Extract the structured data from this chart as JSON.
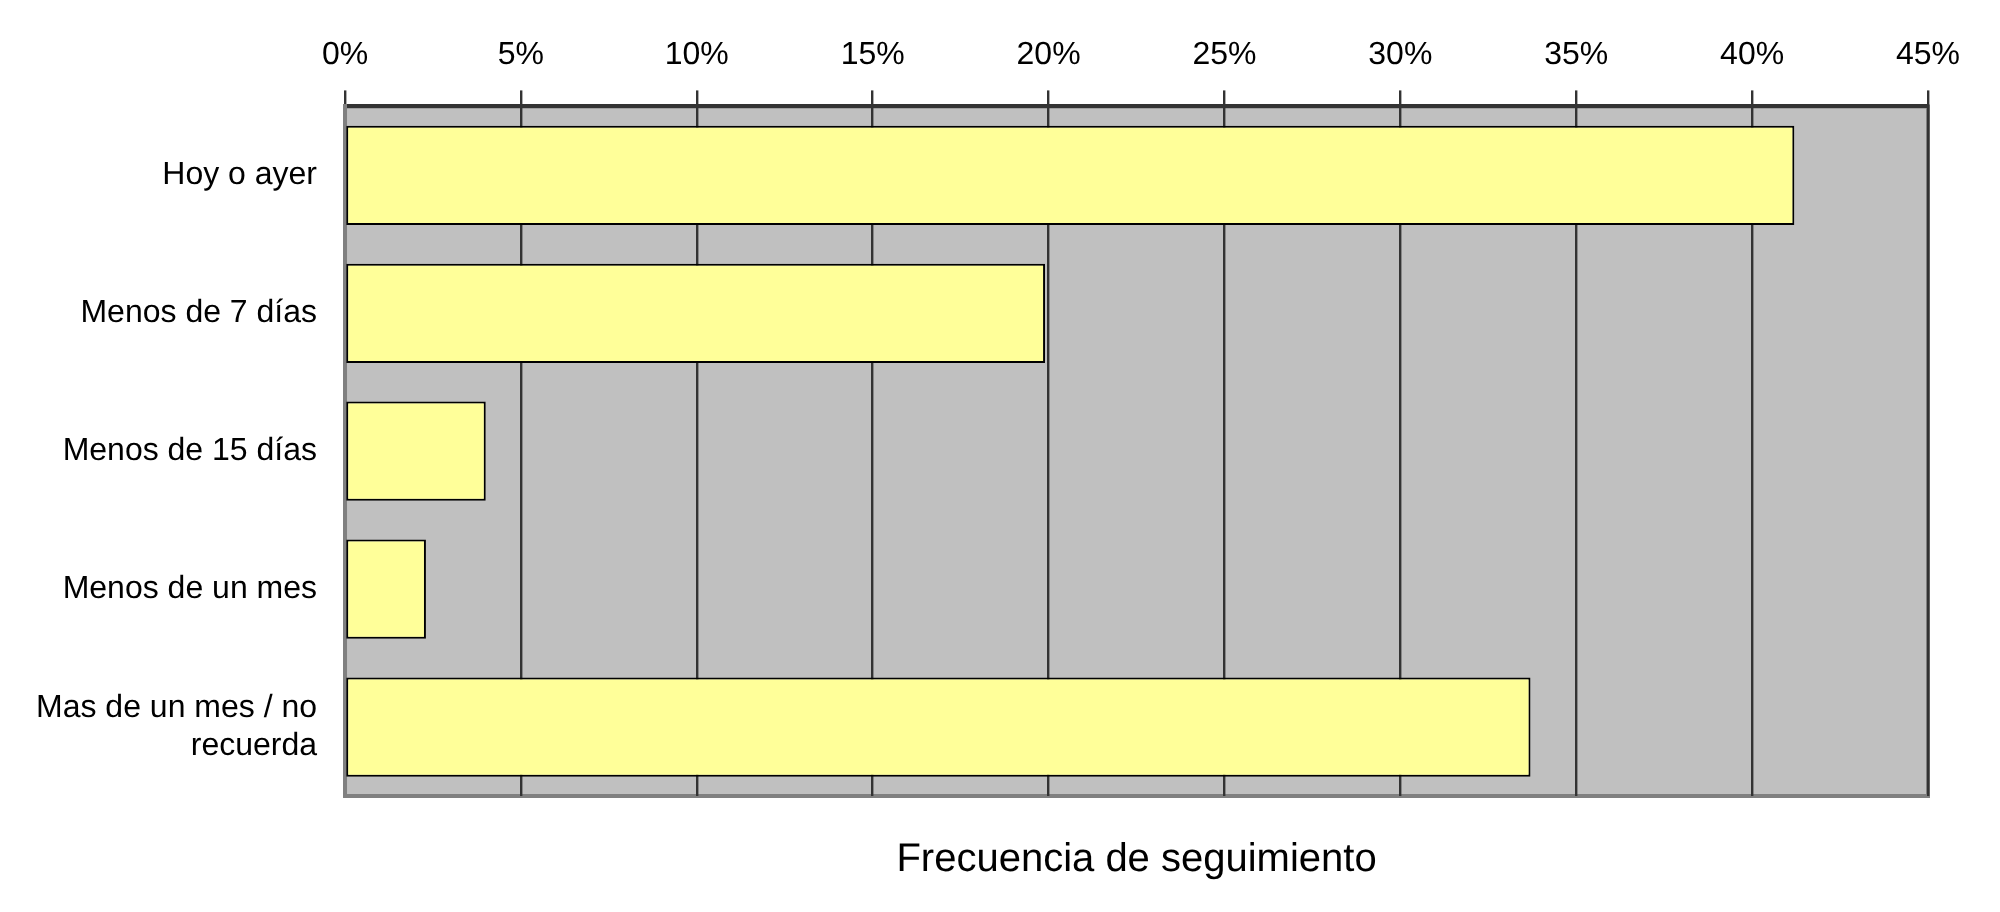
{
  "chart_data": {
    "type": "bar",
    "orientation": "horizontal",
    "xlabel": "Frecuencia de seguimiento",
    "categories": [
      "Hoy o ayer",
      "Menos de 7 días",
      "Menos de 15 días",
      "Menos de un mes",
      "Mas de un mes / no recuerda"
    ],
    "values": [
      41.2,
      19.9,
      4.0,
      2.3,
      33.7
    ],
    "color": "#ffff99",
    "xlim": [
      0,
      45
    ],
    "xticks": [
      {
        "value": 0,
        "label": "0%"
      },
      {
        "value": 5,
        "label": "5%"
      },
      {
        "value": 10,
        "label": "10%"
      },
      {
        "value": 15,
        "label": "15%"
      },
      {
        "value": 20,
        "label": "20%"
      },
      {
        "value": 25,
        "label": "25%"
      },
      {
        "value": 30,
        "label": "30%"
      },
      {
        "value": 35,
        "label": "35%"
      },
      {
        "value": 40,
        "label": "40%"
      },
      {
        "value": 45,
        "label": "45%"
      }
    ],
    "grid": "x",
    "legend": false
  }
}
